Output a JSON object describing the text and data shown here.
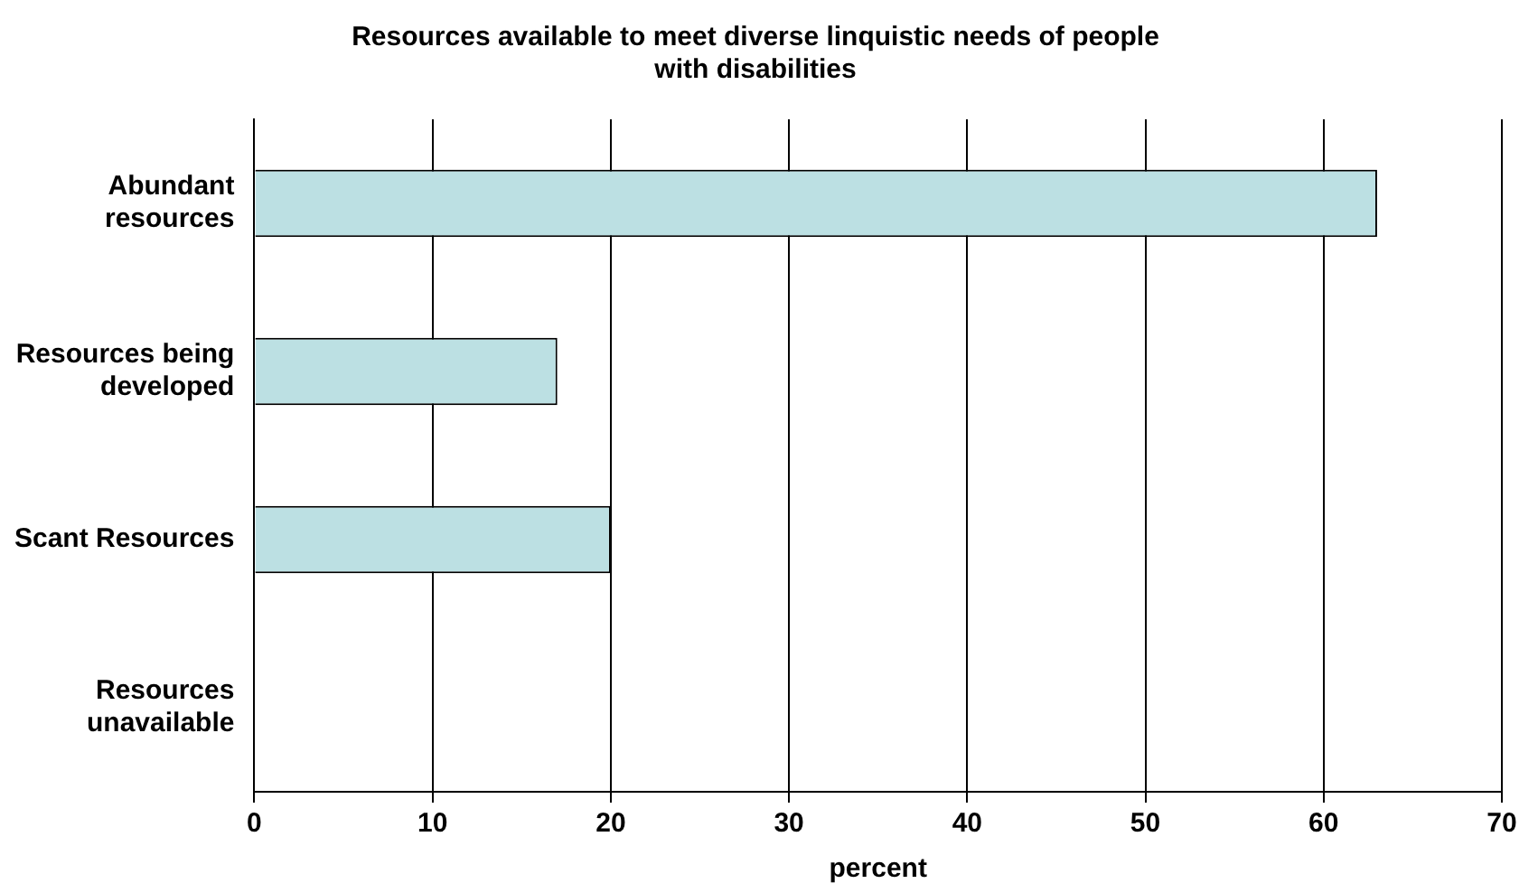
{
  "chart_data": {
    "type": "bar",
    "orientation": "horizontal",
    "title": "Resources available to meet diverse linquistic needs of people with disabilities",
    "xlabel": "percent",
    "categories": [
      "Abundant resources",
      "Resources being developed",
      "Scant Resources",
      "Resources unavailable"
    ],
    "values": [
      63,
      17,
      20,
      0
    ],
    "color": "#bce0e3",
    "xlim": [
      0,
      70
    ],
    "xticks": [
      0,
      10,
      20,
      30,
      40,
      50,
      60,
      70
    ],
    "grid": "x",
    "legend": false
  }
}
